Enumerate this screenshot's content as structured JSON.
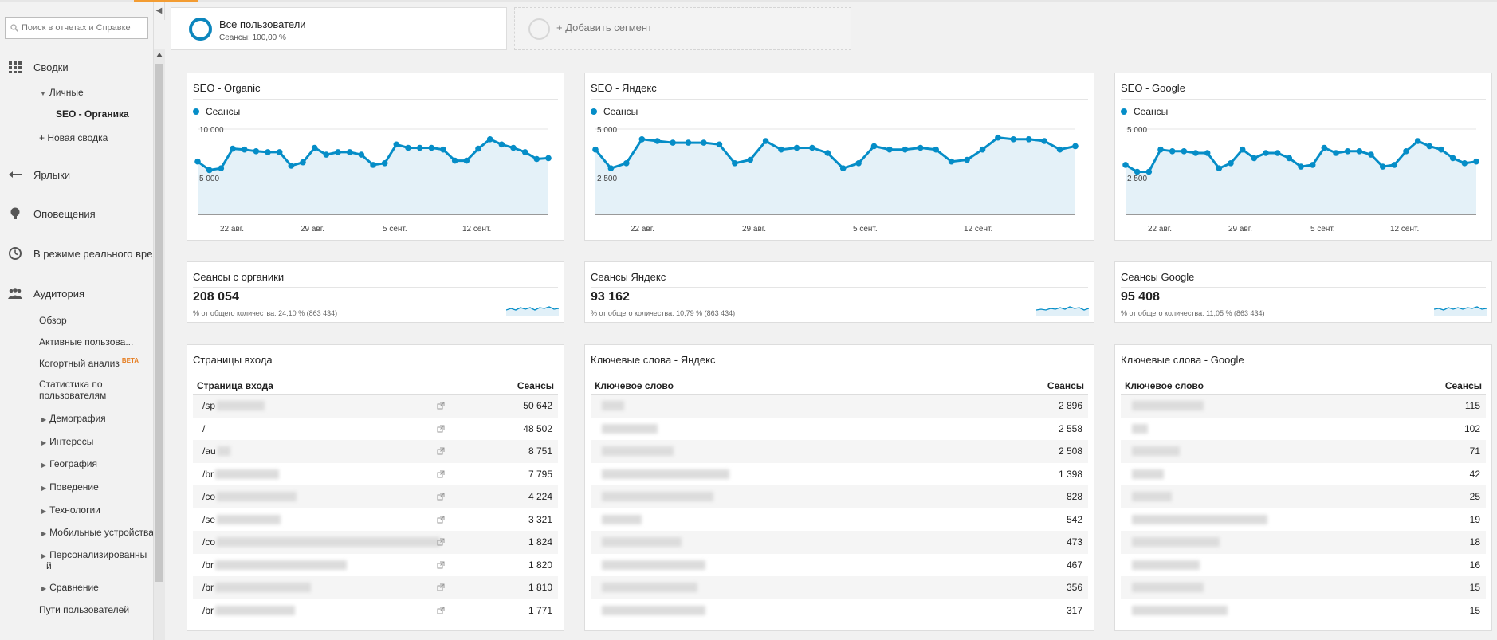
{
  "sidebar": {
    "search_placeholder": "Поиск в отчетах и Справке",
    "reports": "Сводки",
    "personal": "Личные",
    "seo_organic": "SEO - Органика",
    "new_report": "+ Новая сводка",
    "shortcuts": "Ярлыки",
    "alerts": "Оповещения",
    "realtime": "В режиме реального врем",
    "audience": "Аудитория",
    "audience_items": [
      {
        "label": "Обзор"
      },
      {
        "label": "Активные пользова..."
      },
      {
        "label": "Когортный анализ"
      },
      {
        "label": "Статистика по"
      },
      {
        "label": "пользователям"
      },
      {
        "label": "Демография"
      },
      {
        "label": "Интересы"
      },
      {
        "label": "География"
      },
      {
        "label": "Поведение"
      },
      {
        "label": "Технологии"
      },
      {
        "label": "Мобильные устройства"
      },
      {
        "label": "Персонализированны"
      },
      {
        "label": "й"
      },
      {
        "label": "Сравнение"
      },
      {
        "label": "Пути пользователей"
      }
    ],
    "beta": "BETA"
  },
  "segments": {
    "all_users_title": "Все пользователи",
    "all_users_sub": "Сеансы: 100,00 %",
    "add_segment": "+ Добавить сегмент"
  },
  "charts": [
    {
      "title": "SEO - Organic",
      "legend": "Сеансы",
      "y_top": "10 000",
      "y_mid": "5 000",
      "x_labels": [
        "22 авг.",
        "29 авг.",
        "5 сент.",
        "12 сент."
      ]
    },
    {
      "title": "SEO - Яндекс",
      "legend": "Сеансы",
      "y_top": "5 000",
      "y_mid": "2 500",
      "x_labels": [
        "22 авг.",
        "29 авг.",
        "5 сент.",
        "12 сент."
      ]
    },
    {
      "title": "SEO - Google",
      "legend": "Сеансы",
      "y_top": "5 000",
      "y_mid": "2 500",
      "x_labels": [
        "22 авг.",
        "29 авг.",
        "5 сент.",
        "12 сент."
      ]
    }
  ],
  "chart_data": [
    {
      "type": "area",
      "title": "SEO - Organic",
      "series": [
        {
          "name": "Сеансы",
          "values": [
            6200,
            5200,
            5400,
            7700,
            7600,
            7400,
            7300,
            7300,
            5700,
            6100,
            7800,
            7000,
            7300,
            7300,
            7000,
            5800,
            6000,
            8200,
            7800,
            7800,
            7800,
            7600,
            6300,
            6300,
            7700,
            8800,
            8200,
            7800,
            7300,
            6500,
            6600
          ]
        }
      ],
      "ylim": [
        0,
        10000
      ],
      "grid": true
    },
    {
      "type": "area",
      "title": "SEO - Яндекс",
      "series": [
        {
          "name": "Сеансы",
          "values": [
            3800,
            2700,
            3000,
            4400,
            4300,
            4200,
            4200,
            4200,
            4100,
            3000,
            3200,
            4300,
            3800,
            3900,
            3900,
            3600,
            2700,
            3000,
            4000,
            3800,
            3800,
            3900,
            3800,
            3100,
            3200,
            3800,
            4500,
            4400,
            4400,
            4300,
            3800,
            4000
          ]
        }
      ],
      "ylim": [
        0,
        5000
      ],
      "grid": true
    },
    {
      "type": "area",
      "title": "SEO - Google",
      "series": [
        {
          "name": "Сеансы",
          "values": [
            2900,
            2500,
            2500,
            3800,
            3700,
            3700,
            3600,
            3600,
            2700,
            3000,
            3800,
            3300,
            3600,
            3600,
            3300,
            2800,
            2900,
            3900,
            3600,
            3700,
            3700,
            3500,
            2800,
            2900,
            3700,
            4300,
            4000,
            3800,
            3300,
            3000,
            3100
          ]
        }
      ],
      "ylim": [
        0,
        5000
      ],
      "grid": true
    }
  ],
  "metrics": [
    {
      "title": "Сеансы с органики",
      "value": "208 054",
      "pct": "% от общего количества: 24,10 % (863 434)"
    },
    {
      "title": "Сеансы Яндекс",
      "value": "93 162",
      "pct": "% от общего количества: 10,79 % (863 434)"
    },
    {
      "title": "Сеансы Google",
      "value": "95 408",
      "pct": "% от общего количества: 11,05 % (863 434)"
    }
  ],
  "tables": {
    "landing": {
      "title": "Страницы входа",
      "col1": "Страница входа",
      "col2": "Сеансы",
      "rows": [
        {
          "key": "/sp",
          "val": "50 642"
        },
        {
          "key": "/",
          "val": "48 502"
        },
        {
          "key": "/au",
          "val": "8 751"
        },
        {
          "key": "/br",
          "val": "7 795"
        },
        {
          "key": "/co",
          "val": "4 224"
        },
        {
          "key": "/se",
          "val": "3 321"
        },
        {
          "key": "/co",
          "val": "1 824"
        },
        {
          "key": "/br",
          "val": "1 820"
        },
        {
          "key": "/br",
          "val": "1 810"
        },
        {
          "key": "/br",
          "val": "1 771"
        }
      ]
    },
    "yandex": {
      "title": "Ключевые слова - Яндекс",
      "col1": "Ключевое слово",
      "col2": "Сеансы",
      "rows": [
        {
          "val": "2 896"
        },
        {
          "val": "2 558"
        },
        {
          "val": "2 508"
        },
        {
          "val": "1 398"
        },
        {
          "val": "828"
        },
        {
          "val": "542"
        },
        {
          "val": "473"
        },
        {
          "val": "467"
        },
        {
          "val": "356"
        },
        {
          "val": "317"
        }
      ]
    },
    "google": {
      "title": "Ключевые слова - Google",
      "col1": "Ключевое слово",
      "col2": "Сеансы",
      "rows": [
        {
          "val": "115"
        },
        {
          "val": "102"
        },
        {
          "val": "71"
        },
        {
          "val": "42"
        },
        {
          "val": "25"
        },
        {
          "val": "19"
        },
        {
          "val": "18"
        },
        {
          "val": "16"
        },
        {
          "val": "15"
        },
        {
          "val": "15"
        }
      ]
    }
  }
}
